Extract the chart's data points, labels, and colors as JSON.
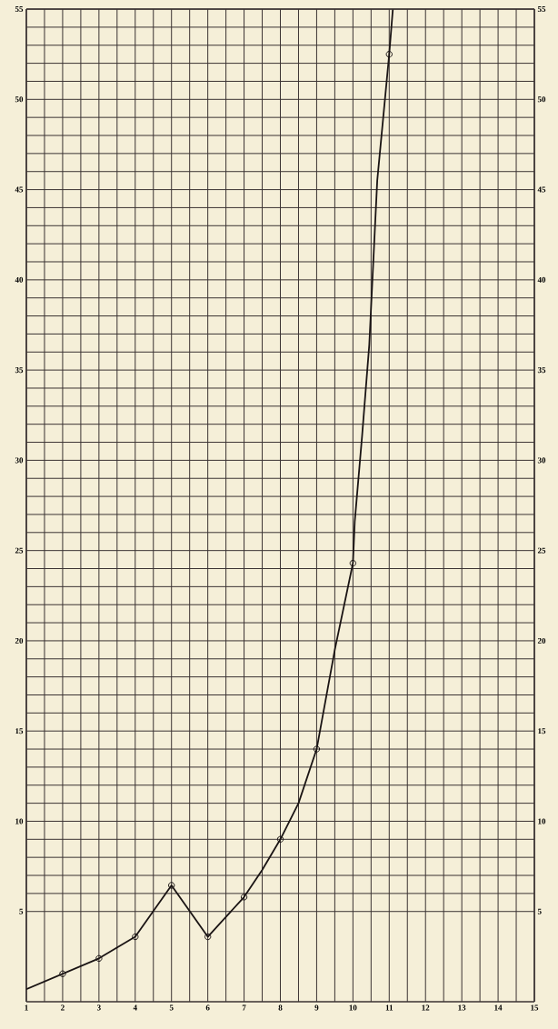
{
  "chart_data": {
    "type": "line",
    "x": [
      1,
      2,
      3,
      4,
      5,
      6,
      7,
      7.5,
      8,
      8.5,
      9,
      9.5,
      10,
      10.05,
      10.25,
      10.45,
      10.67,
      11,
      11.1
    ],
    "series": [
      {
        "color": "#1a1414",
        "marker": "none",
        "values": [
          0.7,
          1.55,
          2.4,
          3.6,
          6.45,
          3.6,
          5.8,
          7.3,
          9,
          11,
          14,
          19.5,
          24.3,
          26.6,
          31.3,
          36.4,
          45.5,
          52.5,
          55
        ]
      },
      {
        "type": "scatter",
        "color": "#1a1414",
        "marker": "circle",
        "x": [
          2,
          3,
          4,
          5,
          6,
          7,
          8,
          9,
          10,
          11
        ],
        "values": [
          1.55,
          2.4,
          3.6,
          6.45,
          3.6,
          5.8,
          9,
          14,
          24.3,
          52.5
        ]
      }
    ],
    "xlim": [
      1,
      15
    ],
    "xticks": [
      1,
      2,
      3,
      4,
      5,
      6,
      7,
      8,
      9,
      10,
      11,
      12,
      13,
      14,
      15
    ],
    "ylim": [
      0,
      55
    ],
    "yticks": [
      5,
      10,
      15,
      20,
      25,
      30,
      35,
      40,
      45,
      50,
      55
    ],
    "y2lim": [
      0,
      55
    ],
    "y2ticks": [
      5,
      10,
      15,
      20,
      25,
      30,
      35,
      40,
      45,
      50,
      55
    ],
    "grid": true
  }
}
